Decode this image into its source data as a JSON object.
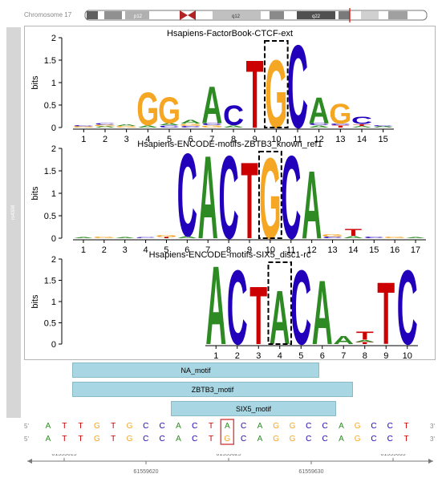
{
  "chromosome": {
    "label": "Chromosome 17",
    "bands": [
      "p12",
      "q12",
      "q22"
    ]
  },
  "side_track_label": "rs4308",
  "colors": {
    "A": "#2e8b23",
    "C": "#2200bb",
    "G": "#f5a623",
    "T": "#cc0000",
    "track_fill": "#a9d6e3",
    "highlight": "#d94b4b"
  },
  "logos": [
    {
      "title": "Hsapiens-FactorBook-CTCF-ext",
      "ylabel": "bits",
      "yticks": [
        "0",
        "0.5",
        "1",
        "1.5",
        "2"
      ],
      "positions": [
        "1",
        "2",
        "3",
        "4",
        "5",
        "6",
        "7",
        "8",
        "9",
        "10",
        "11",
        "12",
        "13",
        "14",
        "15"
      ],
      "highlight_position": 10,
      "letters": [
        [
          [
            "G",
            0.03
          ],
          [
            "C",
            0.02
          ]
        ],
        [
          [
            "A",
            0.03
          ],
          [
            "G",
            0.03
          ],
          [
            "C",
            0.03
          ]
        ],
        [
          [
            "G",
            0.04
          ],
          [
            "A",
            0.03
          ]
        ],
        [
          [
            "A",
            0.05
          ],
          [
            "G",
            0.75
          ]
        ],
        [
          [
            "C",
            0.05
          ],
          [
            "A",
            0.05
          ],
          [
            "G",
            0.6
          ]
        ],
        [
          [
            "C",
            0.04
          ],
          [
            "G",
            0.05
          ],
          [
            "A",
            0.08
          ]
        ],
        [
          [
            "G",
            0.05
          ],
          [
            "C",
            0.05
          ],
          [
            "A",
            0.85
          ]
        ],
        [
          [
            "A",
            0.05
          ],
          [
            "C",
            0.45
          ]
        ],
        [
          [
            "T",
            1.55
          ]
        ],
        [
          [
            "G",
            1.55
          ]
        ],
        [
          [
            "C",
            1.9
          ]
        ],
        [
          [
            "A",
            0.05
          ],
          [
            "C",
            0.05
          ],
          [
            "A",
            0.6
          ]
        ],
        [
          [
            "T",
            0.05
          ],
          [
            "C",
            0.04
          ],
          [
            "G",
            0.45
          ]
        ],
        [
          [
            "A",
            0.04
          ],
          [
            "T",
            0.04
          ],
          [
            "C",
            0.17
          ]
        ],
        [
          [
            "A",
            0.03
          ],
          [
            "C",
            0.02
          ]
        ]
      ]
    },
    {
      "title": "Hsapiens-ENCODE-motifs-ZBTB3_known_ref1",
      "ylabel": "bits",
      "yticks": [
        "0",
        "0.5",
        "1",
        "1.5",
        "2"
      ],
      "positions": [
        "1",
        "2",
        "3",
        "4",
        "5",
        "6",
        "7",
        "8",
        "9",
        "10",
        "11",
        "12",
        "13",
        "14",
        "15",
        "16",
        "17"
      ],
      "highlight_position": 10,
      "letters": [
        [
          [
            "A",
            0.02
          ]
        ],
        [
          [
            "G",
            0.03
          ]
        ],
        [
          [
            "A",
            0.02
          ]
        ],
        [
          [
            "C",
            0.02
          ]
        ],
        [
          [
            "T",
            0.03
          ],
          [
            "G",
            0.05
          ]
        ],
        [
          [
            "A",
            0.05
          ],
          [
            "C",
            1.9
          ]
        ],
        [
          [
            "A",
            1.9
          ]
        ],
        [
          [
            "C",
            1.9
          ]
        ],
        [
          [
            "T",
            1.75
          ]
        ],
        [
          [
            "G",
            1.85
          ]
        ],
        [
          [
            "C",
            1.9
          ]
        ],
        [
          [
            "A",
            1.55
          ]
        ],
        [
          [
            "C",
            0.04
          ],
          [
            "G",
            0.06
          ]
        ],
        [
          [
            "A",
            0.05
          ],
          [
            "T",
            0.15
          ]
        ],
        [
          [
            "C",
            0.04
          ]
        ],
        [
          [
            "G",
            0.03
          ]
        ],
        [
          [
            "A",
            0.02
          ]
        ]
      ]
    },
    {
      "title": "Hsapiens-ENCODE-motifs-SIX5_disc1-rc",
      "ylabel": "bits",
      "yticks": [
        "0",
        "0.5",
        "1",
        "1.5",
        "2"
      ],
      "positions": [
        "1",
        "2",
        "3",
        "4",
        "5",
        "6",
        "7",
        "8",
        "9",
        "10"
      ],
      "highlight_position": 4,
      "letters": [
        [
          [
            "A",
            1.9
          ]
        ],
        [
          [
            "C",
            1.8
          ]
        ],
        [
          [
            "T",
            1.4
          ]
        ],
        [
          [
            "A",
            1.3
          ]
        ],
        [
          [
            "C",
            1.8
          ]
        ],
        [
          [
            "A",
            1.55
          ]
        ],
        [
          [
            "A",
            0.2
          ]
        ],
        [
          [
            "T",
            0.05
          ],
          [
            "A",
            0.05
          ],
          [
            "T",
            0.2
          ]
        ],
        [
          [
            "T",
            1.5
          ]
        ],
        [
          [
            "C",
            1.8
          ]
        ]
      ]
    }
  ],
  "motif_tracks": [
    {
      "label": "NA_motif"
    },
    {
      "label": "ZBTB3_motif"
    },
    {
      "label": "SIX5_motif"
    }
  ],
  "sequence": {
    "strand_start": "5'",
    "strand_end": "3'",
    "row1": [
      "A",
      "T",
      "T",
      "G",
      "T",
      "G",
      "C",
      "C",
      "A",
      "C",
      "T",
      "A",
      "C",
      "A",
      "G",
      "G",
      "C",
      "C",
      "A",
      "G",
      "C",
      "C",
      "T"
    ],
    "row2": [
      "A",
      "T",
      "T",
      "G",
      "T",
      "G",
      "C",
      "C",
      "A",
      "C",
      "T",
      "G",
      "C",
      "A",
      "G",
      "G",
      "C",
      "C",
      "A",
      "G",
      "C",
      "C",
      "T"
    ],
    "highlight_index": 11
  },
  "axis": {
    "top_ticks": [
      "61559615",
      "61559625",
      "61559635"
    ],
    "bottom_ticks": [
      "61559620",
      "61559630"
    ]
  }
}
